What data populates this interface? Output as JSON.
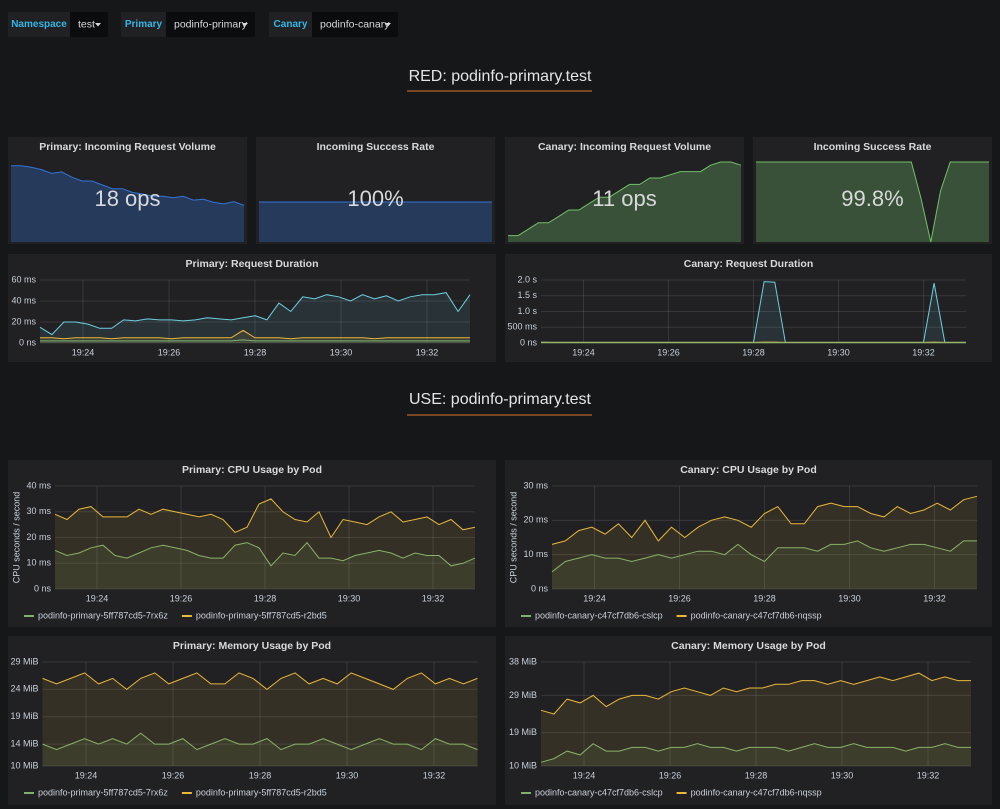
{
  "variables": [
    {
      "label": "Namespace",
      "value": "test"
    },
    {
      "label": "Primary",
      "value": "podinfo-primary"
    },
    {
      "label": "Canary",
      "value": "podinfo-canary"
    }
  ],
  "rows": [
    "RED: podinfo-primary.test",
    "USE: podinfo-primary.test"
  ],
  "stats": [
    {
      "title": "Primary: Incoming Request Volume",
      "value": 18,
      "value_label": "18 ops",
      "color": "#3274d9",
      "ylim": [
        12,
        22.5
      ],
      "sparkline": [
        22,
        22,
        21.8,
        21.5,
        21,
        21.2,
        20.5,
        20,
        20,
        19.5,
        19,
        19,
        18.5,
        18.3,
        18,
        18,
        17.8,
        18,
        17.5,
        17.6,
        17.2,
        17,
        17.3,
        16.8
      ]
    },
    {
      "title": "Incoming Success Rate",
      "value": 100,
      "value_label": "100%",
      "color": "#3274d9",
      "ylim": [
        99,
        101
      ],
      "sparkline": [
        100,
        100,
        100,
        100,
        100,
        100,
        100,
        100,
        100,
        100,
        100,
        100,
        100,
        100,
        100,
        100,
        100,
        100,
        100,
        100,
        100,
        100,
        100,
        100
      ]
    },
    {
      "title": "Canary: Incoming Request Volume",
      "value": 11,
      "value_label": "11 ops",
      "color": "#73bf69",
      "ylim": [
        0,
        12.5
      ],
      "sparkline": [
        1,
        1,
        2,
        3,
        3,
        4,
        5,
        5,
        6,
        7,
        7,
        8,
        9,
        9,
        10,
        10,
        10.5,
        11,
        11,
        11,
        12,
        12.5,
        12.5,
        12
      ]
    },
    {
      "title": "Incoming Success Rate",
      "value": 99.8,
      "value_label": "99.8%",
      "color": "#73bf69",
      "ylim": [
        98.9,
        100
      ],
      "sparkline": [
        100,
        100,
        100,
        100,
        100,
        100,
        100,
        100,
        100,
        100,
        100,
        100,
        100,
        100,
        100,
        100,
        100,
        99.5,
        98.9,
        99.6,
        100,
        100,
        100,
        100,
        100
      ]
    }
  ],
  "chart_data": [
    {
      "type": "line",
      "title": "Primary: Request Duration",
      "xlim": [
        "19:23",
        "19:33"
      ],
      "xticks": [
        "19:24",
        "19:26",
        "19:28",
        "19:30",
        "19:32"
      ],
      "ylim": [
        0,
        60
      ],
      "yticks": [
        {
          "value": 0,
          "label": "0 ns"
        },
        {
          "value": 20,
          "label": "20 ms"
        },
        {
          "value": 40,
          "label": "40 ms"
        },
        {
          "value": 60,
          "label": "60 ms"
        }
      ],
      "series": [
        {
          "color": "#6ed0e0",
          "values": [
            15,
            8,
            20,
            20,
            18,
            14,
            14,
            22,
            21,
            23,
            22,
            22,
            21,
            22,
            24,
            23,
            22,
            24,
            26,
            22,
            38,
            30,
            44,
            42,
            46,
            44,
            40,
            46,
            42,
            45,
            40,
            44,
            46,
            46,
            48,
            30,
            46
          ]
        },
        {
          "color": "#eab839",
          "values": [
            5,
            5,
            4,
            5,
            5,
            5,
            4,
            5,
            5,
            5,
            5,
            4,
            5,
            5,
            5,
            5,
            5,
            12,
            5,
            5,
            5,
            4,
            5,
            5,
            5,
            5,
            5,
            5,
            4,
            5,
            5,
            5,
            5,
            5,
            5,
            5,
            5
          ]
        },
        {
          "color": "#7eb26d",
          "values": [
            2,
            2,
            2,
            2,
            2,
            2,
            2,
            2,
            2,
            2,
            2,
            2,
            2,
            2,
            2,
            2,
            2,
            3,
            2,
            2,
            2,
            2,
            2,
            2,
            2,
            2,
            2,
            2,
            2,
            2,
            2,
            2,
            2,
            2,
            2,
            2,
            2
          ]
        }
      ]
    },
    {
      "type": "line",
      "title": "Canary: Request Duration",
      "xlim": [
        "19:23",
        "19:33"
      ],
      "xticks": [
        "19:24",
        "19:26",
        "19:28",
        "19:30",
        "19:32"
      ],
      "ylim": [
        0,
        2
      ],
      "yticks": [
        {
          "value": 0,
          "label": "0 ns"
        },
        {
          "value": 0.5,
          "label": "500 ms"
        },
        {
          "value": 1,
          "label": "1.0 s"
        },
        {
          "value": 1.5,
          "label": "1.5 s"
        },
        {
          "value": 2,
          "label": "2.0 s"
        }
      ],
      "series": [
        {
          "color": "#6ed0e0",
          "values": [
            0.03,
            0.02,
            0.02,
            0.02,
            0.02,
            0.02,
            0.02,
            0.02,
            0.02,
            0.02,
            0.02,
            0.02,
            0.02,
            0.02,
            0.02,
            0.02,
            0.02,
            0.02,
            0.02,
            0.02,
            0.02,
            1.95,
            1.93,
            0.02,
            0.02,
            0.02,
            0.02,
            0.02,
            0.02,
            0.02,
            0.02,
            0.02,
            0.02,
            0.02,
            0.02,
            0.02,
            0.02,
            1.9,
            0.02,
            0.02,
            0.02
          ]
        },
        {
          "color": "#eab839",
          "values": [
            0.02,
            0.02,
            0.02,
            0.02,
            0.02,
            0.02,
            0.02,
            0.02,
            0.02,
            0.02,
            0.02,
            0.02,
            0.02,
            0.02,
            0.02,
            0.02,
            0.02,
            0.02,
            0.02,
            0.02,
            0.02,
            0.03,
            0.03,
            0.02,
            0.02,
            0.02,
            0.02,
            0.02,
            0.02,
            0.02,
            0.02,
            0.02,
            0.02,
            0.02,
            0.02,
            0.02,
            0.02,
            0.03,
            0.02,
            0.02,
            0.02
          ]
        },
        {
          "color": "#7eb26d",
          "values": [
            0.01,
            0.01,
            0.01,
            0.01,
            0.01,
            0.01,
            0.01,
            0.01,
            0.01,
            0.01,
            0.01,
            0.01,
            0.01,
            0.01,
            0.01,
            0.01,
            0.01,
            0.01,
            0.01,
            0.01,
            0.01,
            0.01,
            0.01,
            0.01,
            0.01,
            0.01,
            0.01,
            0.01,
            0.01,
            0.01,
            0.01,
            0.01,
            0.01,
            0.01,
            0.01,
            0.01,
            0.01,
            0.01,
            0.01,
            0.01,
            0.01
          ]
        }
      ]
    },
    {
      "type": "line",
      "title": "Primary: CPU Usage by Pod",
      "ylabel": "CPU seconds / second",
      "xlim": [
        "19:23",
        "19:33"
      ],
      "xticks": [
        "19:24",
        "19:26",
        "19:28",
        "19:30",
        "19:32"
      ],
      "ylim": [
        0,
        40
      ],
      "yticks": [
        {
          "value": 0,
          "label": "0 ns"
        },
        {
          "value": 10,
          "label": "10 ms"
        },
        {
          "value": 20,
          "label": "20 ms"
        },
        {
          "value": 30,
          "label": "30 ms"
        },
        {
          "value": 40,
          "label": "40 ms"
        }
      ],
      "series": [
        {
          "name": "podinfo-primary-5ff787cd5-7rx6z",
          "color": "#7eb26d",
          "values": [
            15,
            13,
            14,
            16,
            17,
            13,
            12,
            14,
            16,
            17,
            16,
            15,
            13,
            12,
            12,
            17,
            18,
            16,
            9,
            14,
            13,
            18,
            12,
            12,
            11,
            13,
            14,
            15,
            14,
            12,
            14,
            13,
            13,
            9,
            10,
            12
          ]
        },
        {
          "name": "podinfo-primary-5ff787cd5-r2bd5",
          "color": "#eab839",
          "values": [
            29,
            27,
            31,
            32,
            28,
            28,
            28,
            31,
            29,
            31,
            30,
            29,
            28,
            29,
            27,
            22,
            24,
            33,
            35,
            30,
            27,
            26,
            30,
            20,
            27,
            26,
            25,
            28,
            30,
            26,
            27,
            28,
            25,
            27,
            23,
            24
          ]
        }
      ]
    },
    {
      "type": "line",
      "title": "Canary: CPU Usage by Pod",
      "ylabel": "CPU seconds / second",
      "xlim": [
        "19:23",
        "19:33"
      ],
      "xticks": [
        "19:24",
        "19:26",
        "19:28",
        "19:30",
        "19:32"
      ],
      "ylim": [
        0,
        30
      ],
      "yticks": [
        {
          "value": 0,
          "label": "0 ns"
        },
        {
          "value": 10,
          "label": "10 ms"
        },
        {
          "value": 20,
          "label": "20 ms"
        },
        {
          "value": 30,
          "label": "30 ms"
        }
      ],
      "series": [
        {
          "name": "podinfo-canary-c47cf7db6-cslcp",
          "color": "#7eb26d",
          "values": [
            5,
            8,
            9,
            10,
            9,
            9,
            8,
            9,
            10,
            9,
            10,
            11,
            11,
            10,
            13,
            10,
            8,
            12,
            12,
            12,
            11,
            13,
            13,
            14,
            12,
            11,
            12,
            13,
            13,
            12,
            11,
            14,
            14
          ]
        },
        {
          "name": "podinfo-canary-c47cf7db6-nqssp",
          "color": "#eab839",
          "values": [
            13,
            14,
            17,
            18,
            16,
            19,
            15,
            20,
            14,
            18,
            15,
            18,
            20,
            21,
            20,
            18,
            22,
            24,
            19,
            19,
            24,
            25,
            24,
            24,
            22,
            21,
            24,
            22,
            23,
            25,
            23,
            26,
            27
          ]
        }
      ]
    },
    {
      "type": "line",
      "title": "Primary: Memory Usage by Pod",
      "xlim": [
        "19:23",
        "19:33"
      ],
      "xticks": [
        "19:24",
        "19:26",
        "19:28",
        "19:30",
        "19:32"
      ],
      "ylim": [
        10,
        29
      ],
      "yticks": [
        {
          "value": 10,
          "label": "10 MiB"
        },
        {
          "value": 14,
          "label": "14 MiB"
        },
        {
          "value": 19,
          "label": "19 MiB"
        },
        {
          "value": 24,
          "label": "24 MiB"
        },
        {
          "value": 29,
          "label": "29 MiB"
        }
      ],
      "series": [
        {
          "name": "podinfo-primary-5ff787cd5-7rx6z",
          "color": "#7eb26d",
          "values": [
            14,
            13,
            14,
            15,
            14,
            15,
            14,
            16,
            14,
            14,
            15,
            13,
            14,
            15,
            14,
            14,
            15,
            13,
            14,
            14,
            15,
            14,
            13,
            14,
            15,
            14,
            14,
            13,
            15,
            14,
            14,
            13
          ]
        },
        {
          "name": "podinfo-primary-5ff787cd5-r2bd5",
          "color": "#eab839",
          "values": [
            26,
            25,
            26,
            27,
            25,
            26,
            24,
            26,
            27,
            25,
            26,
            27,
            25,
            25,
            27,
            26,
            24,
            26,
            27,
            25,
            26,
            25,
            27,
            26,
            25,
            24,
            26,
            27,
            25,
            26,
            25,
            26
          ]
        }
      ]
    },
    {
      "type": "line",
      "title": "Canary: Memory Usage by Pod",
      "xlim": [
        "19:23",
        "19:33"
      ],
      "xticks": [
        "19:24",
        "19:26",
        "19:28",
        "19:30",
        "19:32"
      ],
      "ylim": [
        10,
        38
      ],
      "yticks": [
        {
          "value": 10,
          "label": "10 MiB"
        },
        {
          "value": 19,
          "label": "19 MiB"
        },
        {
          "value": 29,
          "label": "29 MiB"
        },
        {
          "value": 38,
          "label": "38 MiB"
        }
      ],
      "series": [
        {
          "name": "podinfo-canary-c47cf7db6-cslcp",
          "color": "#7eb26d",
          "values": [
            11,
            12,
            14,
            13,
            16,
            14,
            14,
            15,
            15,
            14,
            15,
            15,
            16,
            15,
            15,
            14,
            15,
            15,
            15,
            14,
            15,
            16,
            15,
            15,
            16,
            15,
            15,
            15,
            14,
            15,
            15,
            16,
            15,
            15
          ]
        },
        {
          "name": "podinfo-canary-c47cf7db6-nqssp",
          "color": "#eab839",
          "values": [
            25,
            24,
            28,
            27,
            29,
            26,
            28,
            29,
            29,
            28,
            30,
            31,
            30,
            29,
            31,
            30,
            31,
            31,
            32,
            32,
            33,
            33,
            32,
            33,
            32,
            33,
            34,
            33,
            34,
            35,
            33,
            34,
            33,
            33
          ]
        }
      ]
    }
  ]
}
